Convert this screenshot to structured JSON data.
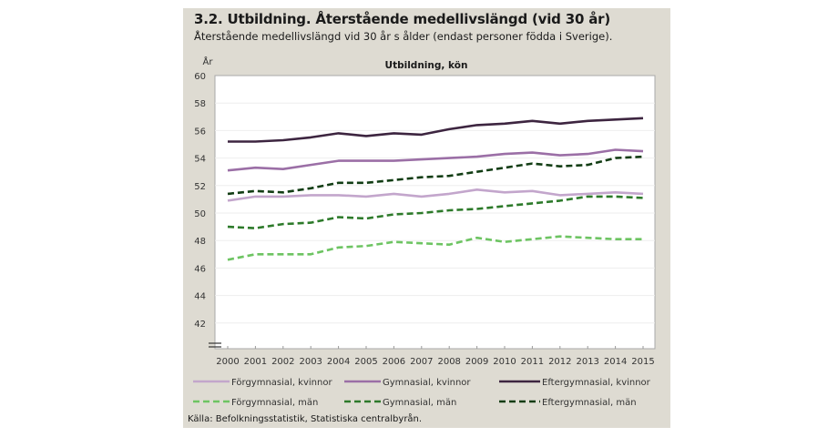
{
  "header": {
    "title": "3.2. Utbildning. Återstående medellivslängd (vid 30 år)",
    "subtitle": "Återstående medellivslängd vid 30 år s ålder (endast personer födda i Sverige)."
  },
  "source": "Källa: Befolkningsstatistik, Statistiska centralbyrån.",
  "chart_data": {
    "type": "line",
    "title": "Utbildning, kön",
    "xlabel": "",
    "ylabel": "År",
    "ylim": [
      40,
      60
    ],
    "yticks": [
      42,
      44,
      46,
      48,
      50,
      52,
      54,
      56,
      58,
      60
    ],
    "y_axis_break": true,
    "grid": true,
    "legend_position": "bottom",
    "x": [
      "2000",
      "2001",
      "2002",
      "2003",
      "2004",
      "2005",
      "2006",
      "2007",
      "2008",
      "2009",
      "2010",
      "2011",
      "2012",
      "2013",
      "2014",
      "2015"
    ],
    "series": [
      {
        "name": "Förgymnasial, kvinnor",
        "color": "#c3a6cc",
        "style": "solid",
        "values": [
          50.9,
          51.2,
          51.2,
          51.3,
          51.3,
          51.2,
          51.4,
          51.2,
          51.4,
          51.7,
          51.5,
          51.6,
          51.3,
          51.4,
          51.5,
          51.4
        ]
      },
      {
        "name": "Gymnasial, kvinnor",
        "color": "#9b6fa6",
        "style": "solid",
        "values": [
          53.1,
          53.3,
          53.2,
          53.5,
          53.8,
          53.8,
          53.8,
          53.9,
          54.0,
          54.1,
          54.3,
          54.4,
          54.2,
          54.3,
          54.6,
          54.5
        ]
      },
      {
        "name": "Eftergymnasial, kvinnor",
        "color": "#3d2540",
        "style": "solid",
        "values": [
          55.2,
          55.2,
          55.3,
          55.5,
          55.8,
          55.6,
          55.8,
          55.7,
          56.1,
          56.4,
          56.5,
          56.7,
          56.5,
          56.7,
          56.8,
          56.9
        ]
      },
      {
        "name": "Förgymnasial, män",
        "color": "#6dc462",
        "style": "dashed",
        "values": [
          46.6,
          47.0,
          47.0,
          47.0,
          47.5,
          47.6,
          47.9,
          47.8,
          47.7,
          48.2,
          47.9,
          48.1,
          48.3,
          48.2,
          48.1,
          48.1
        ]
      },
      {
        "name": "Gymnasial, män",
        "color": "#2d7a2a",
        "style": "dashed",
        "values": [
          49.0,
          48.9,
          49.2,
          49.3,
          49.7,
          49.6,
          49.9,
          50.0,
          50.2,
          50.3,
          50.5,
          50.7,
          50.9,
          51.2,
          51.2,
          51.1
        ]
      },
      {
        "name": "Eftergymnasial, män",
        "color": "#123d14",
        "style": "dashed",
        "values": [
          51.4,
          51.6,
          51.5,
          51.8,
          52.2,
          52.2,
          52.4,
          52.6,
          52.7,
          53.0,
          53.3,
          53.6,
          53.4,
          53.5,
          54.0,
          54.1
        ]
      }
    ]
  }
}
